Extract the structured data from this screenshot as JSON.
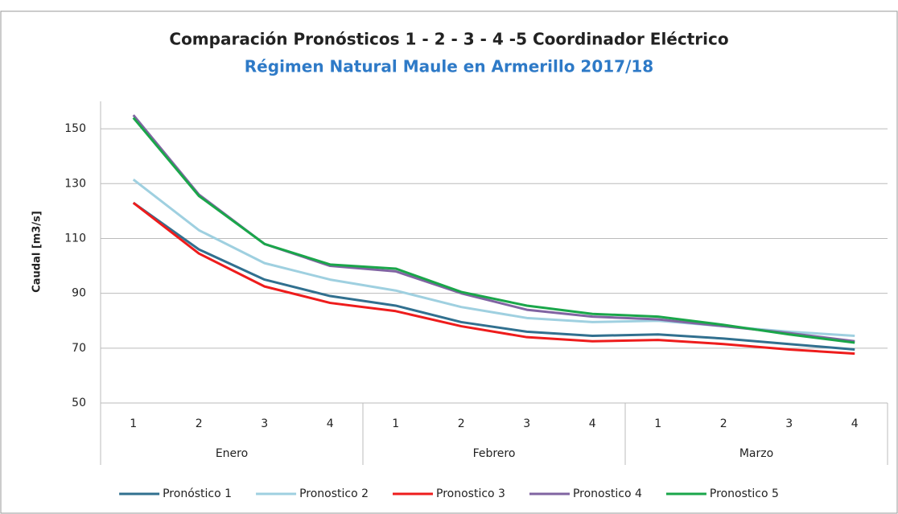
{
  "chart_data": {
    "type": "line",
    "title": "Comparación Pronósticos 1 - 2 - 3 - 4 -5 Coordinador Eléctrico",
    "subtitle": "Régimen Natural Maule en Armerillo 2017/18",
    "y_label": "Caudal [m3/s]",
    "categories": [
      "1",
      "2",
      "3",
      "4",
      "1",
      "2",
      "3",
      "4",
      "1",
      "2",
      "3",
      "4"
    ],
    "groups": [
      "Enero",
      "Febrero",
      "Marzo"
    ],
    "ylim": [
      50,
      160
    ],
    "yticks": [
      50,
      70,
      90,
      110,
      130,
      150
    ],
    "grid": true,
    "legend": "bottom",
    "series": [
      {
        "name": "Pronóstico 1",
        "color": "#31708f",
        "values": [
          123,
          106,
          95,
          89,
          85.5,
          79.5,
          76,
          74.5,
          75,
          73.5,
          71.5,
          69.5
        ]
      },
      {
        "name": "Pronostico 2",
        "color": "#9fd0e0",
        "values": [
          131.5,
          113,
          101,
          95,
          91,
          85,
          81,
          79.5,
          80,
          78,
          76,
          74.5
        ]
      },
      {
        "name": "Pronostico 3",
        "color": "#ee1c1c",
        "values": [
          123,
          104.5,
          92.5,
          86.5,
          83.5,
          78,
          74,
          72.5,
          73,
          71.5,
          69.5,
          68
        ]
      },
      {
        "name": "Pronostico 4",
        "color": "#8064a2",
        "values": [
          155,
          126,
          108,
          100,
          98,
          90,
          84,
          81.5,
          80.5,
          78,
          75.5,
          72.5
        ]
      },
      {
        "name": "Pronostico 5",
        "color": "#1aa64a",
        "values": [
          154,
          125.5,
          108,
          100.5,
          99,
          90.5,
          85.5,
          82.5,
          81.5,
          78.5,
          75,
          72
        ]
      }
    ]
  }
}
